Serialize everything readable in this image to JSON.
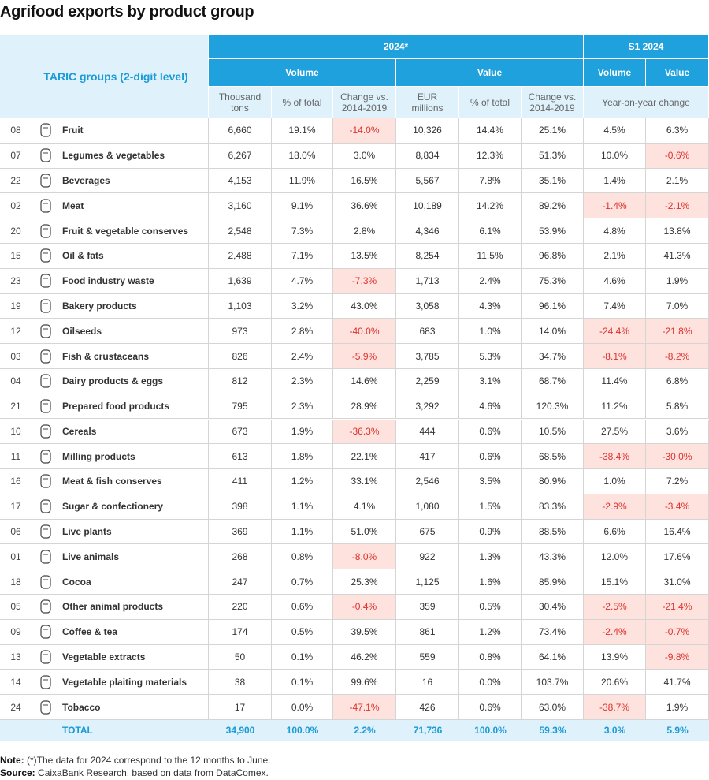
{
  "title": "Agrifood exports by product group",
  "table": {
    "header": {
      "stub": "TARIC groups (2-digit level)",
      "group_2024": "2024*",
      "group_s1": "S1 2024",
      "volume": "Volume",
      "value": "Value",
      "volume_s1": "Volume",
      "value_s1": "Value",
      "sub": [
        "Thousand tons",
        "% of total",
        "Change vs. 2014-2019",
        "EUR millions",
        "% of total",
        "Change vs. 2014-2019"
      ],
      "yoy": "Year-on-year change"
    },
    "rows": [
      [
        "08",
        "Fruit",
        "6,660",
        "19.1%",
        "-14.0%",
        "10,326",
        "14.4%",
        "25.1%",
        "4.5%",
        "6.3%"
      ],
      [
        "07",
        "Legumes & vegetables",
        "6,267",
        "18.0%",
        "3.0%",
        "8,834",
        "12.3%",
        "51.3%",
        "10.0%",
        "-0.6%"
      ],
      [
        "22",
        "Beverages",
        "4,153",
        "11.9%",
        "16.5%",
        "5,567",
        "7.8%",
        "35.1%",
        "1.4%",
        "2.1%"
      ],
      [
        "02",
        "Meat",
        "3,160",
        "9.1%",
        "36.6%",
        "10,189",
        "14.2%",
        "89.2%",
        "-1.4%",
        "-2.1%"
      ],
      [
        "20",
        "Fruit & vegetable conserves",
        "2,548",
        "7.3%",
        "2.8%",
        "4,346",
        "6.1%",
        "53.9%",
        "4.8%",
        "13.8%"
      ],
      [
        "15",
        "Oil & fats",
        "2,488",
        "7.1%",
        "13.5%",
        "8,254",
        "11.5%",
        "96.8%",
        "2.1%",
        "41.3%"
      ],
      [
        "23",
        "Food industry waste",
        "1,639",
        "4.7%",
        "-7.3%",
        "1,713",
        "2.4%",
        "75.3%",
        "4.6%",
        "1.9%"
      ],
      [
        "19",
        "Bakery products",
        "1,103",
        "3.2%",
        "43.0%",
        "3,058",
        "4.3%",
        "96.1%",
        "7.4%",
        "7.0%"
      ],
      [
        "12",
        "Oilseeds",
        "973",
        "2.8%",
        "-40.0%",
        "683",
        "1.0%",
        "14.0%",
        "-24.4%",
        "-21.8%"
      ],
      [
        "03",
        "Fish & crustaceans",
        "826",
        "2.4%",
        "-5.9%",
        "3,785",
        "5.3%",
        "34.7%",
        "-8.1%",
        "-8.2%"
      ],
      [
        "04",
        "Dairy products & eggs",
        "812",
        "2.3%",
        "14.6%",
        "2,259",
        "3.1%",
        "68.7%",
        "11.4%",
        "6.8%"
      ],
      [
        "21",
        "Prepared food products",
        "795",
        "2.3%",
        "28.9%",
        "3,292",
        "4.6%",
        "120.3%",
        "11.2%",
        "5.8%"
      ],
      [
        "10",
        "Cereals",
        "673",
        "1.9%",
        "-36.3%",
        "444",
        "0.6%",
        "10.5%",
        "27.5%",
        "3.6%"
      ],
      [
        "11",
        "Milling products",
        "613",
        "1.8%",
        "22.1%",
        "417",
        "0.6%",
        "68.5%",
        "-38.4%",
        "-30.0%"
      ],
      [
        "16",
        "Meat & fish conserves",
        "411",
        "1.2%",
        "33.1%",
        "2,546",
        "3.5%",
        "80.9%",
        "1.0%",
        "7.2%"
      ],
      [
        "17",
        "Sugar & confectionery",
        "398",
        "1.1%",
        "4.1%",
        "1,080",
        "1.5%",
        "83.3%",
        "-2.9%",
        "-3.4%"
      ],
      [
        "06",
        "Live plants",
        "369",
        "1.1%",
        "51.0%",
        "675",
        "0.9%",
        "88.5%",
        "6.6%",
        "16.4%"
      ],
      [
        "01",
        "Live animals",
        "268",
        "0.8%",
        "-8.0%",
        "922",
        "1.3%",
        "43.3%",
        "12.0%",
        "17.6%"
      ],
      [
        "18",
        "Cocoa",
        "247",
        "0.7%",
        "25.3%",
        "1,125",
        "1.6%",
        "85.9%",
        "15.1%",
        "31.0%"
      ],
      [
        "05",
        "Other animal products",
        "220",
        "0.6%",
        "-0.4%",
        "359",
        "0.5%",
        "30.4%",
        "-2.5%",
        "-21.4%"
      ],
      [
        "09",
        "Coffee & tea",
        "174",
        "0.5%",
        "39.5%",
        "861",
        "1.2%",
        "73.4%",
        "-2.4%",
        "-0.7%"
      ],
      [
        "13",
        "Vegetable extracts",
        "50",
        "0.1%",
        "46.2%",
        "559",
        "0.8%",
        "64.1%",
        "13.9%",
        "-9.8%"
      ],
      [
        "14",
        "Vegetable plaiting materials",
        "38",
        "0.1%",
        "99.6%",
        "16",
        "0.0%",
        "103.7%",
        "20.6%",
        "41.7%"
      ],
      [
        "24",
        "Tobacco",
        "17",
        "0.0%",
        "-47.1%",
        "426",
        "0.6%",
        "63.0%",
        "-38.7%",
        "1.9%"
      ]
    ],
    "total": {
      "label": "TOTAL",
      "values": [
        "34,900",
        "100.0%",
        "2.2%",
        "71,736",
        "100.0%",
        "59.3%",
        "3.0%",
        "5.9%"
      ]
    }
  },
  "notes": {
    "note_label": "Note:",
    "note": " (*)The data for 2024 correspond to the 12 months to June.",
    "source_label": "Source:",
    "source": " CaixaBank Research, based on data from DataComex."
  }
}
